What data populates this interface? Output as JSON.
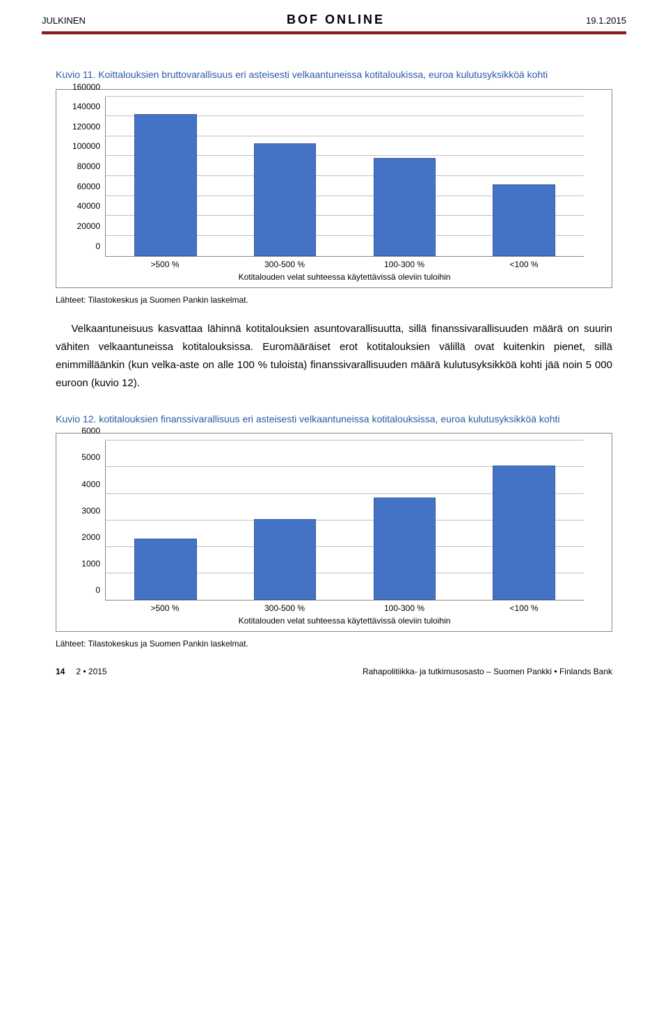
{
  "header": {
    "left": "JULKINEN",
    "center": "BOF ONLINE",
    "right": "19.1.2015"
  },
  "divider_color": "#8b1a1a",
  "figure11": {
    "title": "Kuvio 11. Koittalouksien bruttovarallisuus eri asteisesti velkaantuneissa kotitaloukissa, euroa kulutusyksikköä kohti",
    "chart": {
      "type": "bar",
      "categories": [
        ">500 %",
        "300-500 %",
        "100-300 %",
        "<100 %"
      ],
      "values": [
        142000,
        113000,
        98000,
        72000
      ],
      "bar_color": "#4472c4",
      "bar_border": "#3a5a9a",
      "ylim_max": 160000,
      "ytick_step": 20000,
      "background_color": "#ffffff",
      "grid_color": "#bfbfbf",
      "bar_width_pct": 13,
      "axis_caption": "Kotitalouden velat suhteessa käytettävissä oleviin tuloihin",
      "label_fontsize": 12
    },
    "source": "Lähteet: Tilastokeskus ja Suomen Pankin laskelmat."
  },
  "body": "Velkaantuneisuus kasvattaa lähinnä kotitalouksien asuntovarallisuutta, sillä finanssivarallisuuden määrä on suurin vähiten velkaantuneissa kotitalouksissa. Euromääräiset erot kotitalouksien välillä ovat kuitenkin pienet, sillä enimmilläänkin (kun velka-aste on alle 100 % tuloista) finanssivarallisuuden määrä kulutusyksikköä kohti jää noin 5 000 euroon (kuvio 12).",
  "figure12": {
    "title": "Kuvio 12. kotitalouksien finanssivarallisuus eri asteisesti velkaantuneissa kotitalouksissa, euroa kulutusyksikköä kohti",
    "chart": {
      "type": "bar",
      "categories": [
        ">500 %",
        "300-500 %",
        "100-300 %",
        "<100 %"
      ],
      "values": [
        2300,
        3050,
        3850,
        5050
      ],
      "bar_color": "#4472c4",
      "bar_border": "#3a5a9a",
      "ylim_max": 6000,
      "ytick_step": 1000,
      "background_color": "#ffffff",
      "grid_color": "#bfbfbf",
      "bar_width_pct": 13,
      "axis_caption": "Kotitalouden velat suhteessa käytettävissä oleviin tuloihin",
      "label_fontsize": 12
    },
    "source": "Lähteet: Tilastokeskus ja Suomen Pankin laskelmat."
  },
  "footer": {
    "page": "14",
    "issue": "2 • 2015",
    "right": "Rahapolitiikka- ja tutkimusosasto – Suomen Pankki • Finlands Bank"
  }
}
